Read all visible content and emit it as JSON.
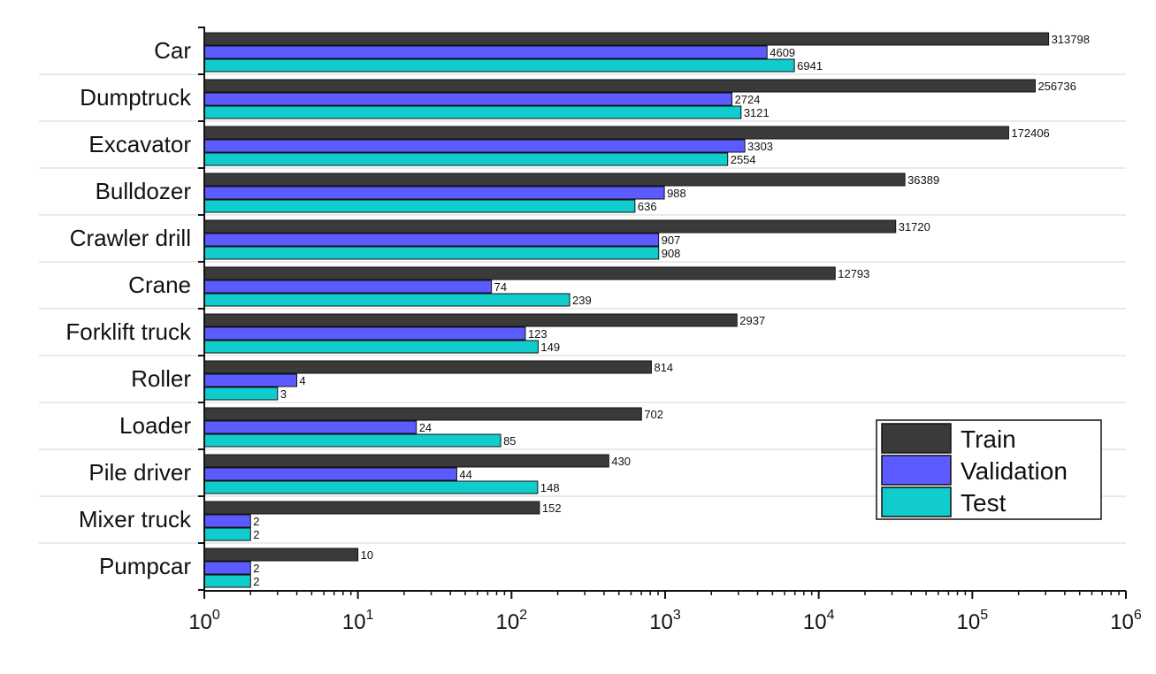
{
  "chart_data": {
    "type": "bar",
    "orientation": "horizontal",
    "x_scale": "log",
    "xlim": [
      1,
      1000000
    ],
    "grid": "horizontal separators between categories",
    "legend_position": "bottom-right",
    "categories": [
      "Car",
      "Dumptruck",
      "Excavator",
      "Bulldozer",
      "Crawler drill",
      "Crane",
      "Forklift truck",
      "Roller",
      "Loader",
      "Pile driver",
      "Mixer truck",
      "Pumpcar"
    ],
    "series": [
      {
        "name": "Train",
        "color": "#3a3a3a",
        "values": [
          313798,
          256736,
          172406,
          36389,
          31720,
          12793,
          2937,
          814,
          702,
          430,
          152,
          10
        ]
      },
      {
        "name": "Validation",
        "color": "#5b5bff",
        "values": [
          4609,
          2724,
          3303,
          988,
          907,
          74,
          123,
          4,
          24,
          44,
          2,
          2
        ]
      },
      {
        "name": "Test",
        "color": "#11cccc",
        "values": [
          6941,
          3121,
          2554,
          636,
          908,
          239,
          149,
          3,
          85,
          148,
          2,
          2
        ]
      }
    ],
    "x_ticks": [
      {
        "base": "10",
        "exp": "0",
        "value": 1
      },
      {
        "base": "10",
        "exp": "1",
        "value": 10
      },
      {
        "base": "10",
        "exp": "2",
        "value": 100
      },
      {
        "base": "10",
        "exp": "3",
        "value": 1000
      },
      {
        "base": "10",
        "exp": "4",
        "value": 10000
      },
      {
        "base": "10",
        "exp": "5",
        "value": 100000
      },
      {
        "base": "10",
        "exp": "6",
        "value": 1000000
      }
    ]
  }
}
